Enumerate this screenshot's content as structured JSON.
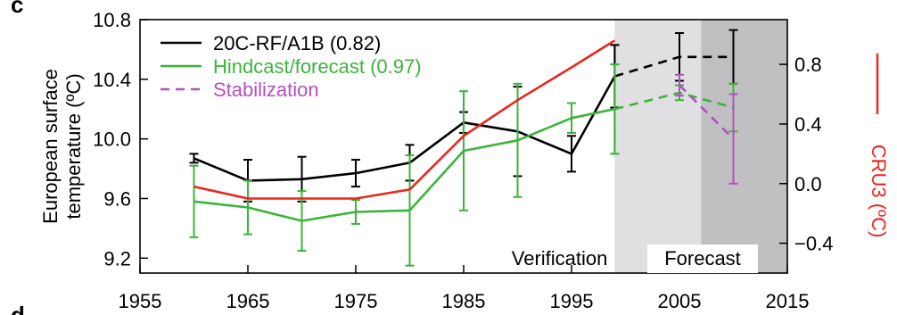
{
  "panel_labels": {
    "top": "c",
    "bottom": "d"
  },
  "colors": {
    "model": "#000000",
    "hindcast": "#3cb43c",
    "stabilization": "#b450c0",
    "observed": "#e8261e",
    "verification_band": "#e0e0e2",
    "forecast_band": "#c0c0c2"
  },
  "chart_data": {
    "type": "line",
    "title": "",
    "xlabel": "",
    "ylabel": "European surface temperature (ºC)",
    "ylabel_lines": [
      "European surface",
      "temperature (ºC)"
    ],
    "y2label": "CRU3 (ºC)",
    "xlim": [
      1955,
      2015
    ],
    "ylim": [
      9.1,
      10.8
    ],
    "y2lim": [
      -0.6,
      1.1
    ],
    "xticks": [
      "1955",
      "1965",
      "1975",
      "1985",
      "1995",
      "2005",
      "2015"
    ],
    "yticks": [
      "9.2",
      "9.6",
      "10.0",
      "10.4",
      "10.8"
    ],
    "y2ticks": [
      "−0.4",
      "0.0",
      "0.4",
      "0.8"
    ],
    "grid": false,
    "legend_position": "top-left",
    "regions": [
      {
        "label": "Verification",
        "x": [
          1999,
          2007
        ]
      },
      {
        "label": "Forecast",
        "x": [
          2007,
          2015
        ]
      }
    ],
    "series": [
      {
        "name": "20C-RF/A1B (0.82)",
        "color": "#000000",
        "axis": "left",
        "x": [
          1960,
          1965,
          1970,
          1975,
          1980,
          1985,
          1990,
          1995,
          1999
        ],
        "y": [
          9.87,
          9.72,
          9.73,
          9.77,
          9.84,
          10.11,
          10.05,
          9.9,
          10.42
        ],
        "err": [
          0.03,
          0.14,
          0.15,
          0.09,
          0.12,
          0.07,
          0.3,
          0.12,
          0.21
        ]
      },
      {
        "name": "20C-RF/A1B forecast",
        "color": "#000000",
        "axis": "left",
        "dashed": true,
        "x": [
          1999,
          2005,
          2010
        ],
        "y": [
          10.42,
          10.55,
          10.55
        ],
        "err": [
          0.21,
          0.16,
          0.18
        ]
      },
      {
        "name": "Hindcast/forecast (0.97)",
        "color": "#3cb43c",
        "axis": "left",
        "x": [
          1960,
          1965,
          1970,
          1975,
          1980,
          1985,
          1990,
          1995,
          1999
        ],
        "y": [
          9.58,
          9.54,
          9.45,
          9.51,
          9.52,
          9.92,
          9.99,
          10.14,
          10.2
        ],
        "err": [
          0.24,
          0.18,
          0.2,
          0.08,
          0.37,
          0.4,
          0.38,
          0.1,
          0.3
        ]
      },
      {
        "name": "Hindcast/forecast forecast",
        "color": "#3cb43c",
        "axis": "left",
        "dashed": true,
        "x": [
          1999,
          2005,
          2010
        ],
        "y": [
          10.2,
          10.31,
          10.21
        ],
        "err": [
          0.3,
          0.05,
          0.16
        ]
      },
      {
        "name": "Stabilization",
        "color": "#b450c0",
        "axis": "left",
        "dashed": true,
        "x": [
          2005,
          2010
        ],
        "y": [
          10.36,
          10.0
        ],
        "err": [
          0.07,
          0.3
        ]
      },
      {
        "name": "CRU3",
        "color": "#e8261e",
        "axis": "right",
        "x": [
          1960,
          1965,
          1970,
          1975,
          1980,
          1985,
          1990,
          1995,
          1999
        ],
        "y": [
          -0.02,
          -0.1,
          -0.1,
          -0.1,
          -0.04,
          0.32,
          0.56,
          0.78,
          0.96
        ]
      }
    ],
    "legend": [
      {
        "label": "20C-RF/A1B (0.82)",
        "color": "#000000",
        "dashed": false
      },
      {
        "label": "Hindcast/forecast (0.97)",
        "color": "#3cb43c",
        "dashed": false
      },
      {
        "label": "Stabilization",
        "color": "#b450c0",
        "dashed": true
      }
    ]
  }
}
